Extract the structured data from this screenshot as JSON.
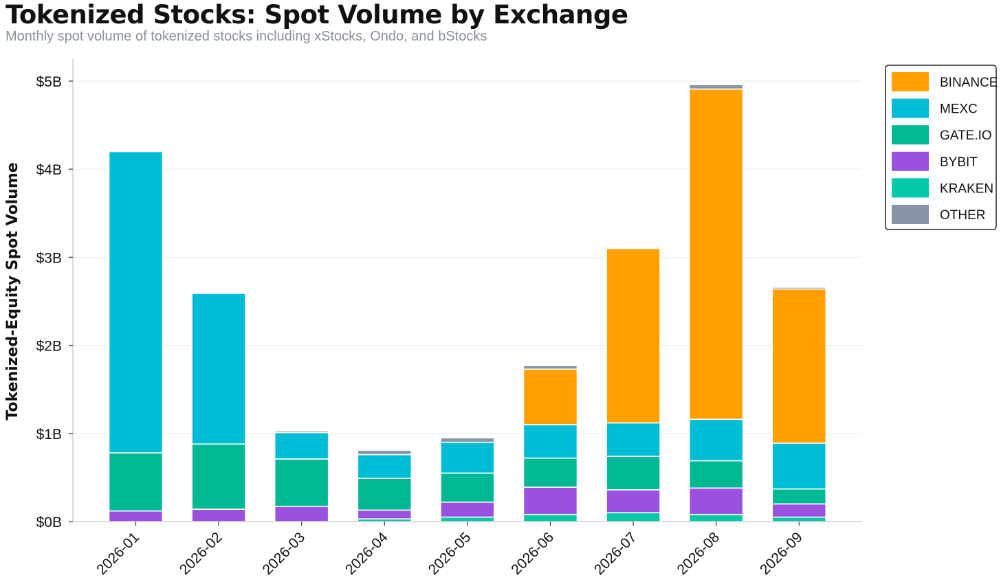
{
  "header": {
    "title": "Tokenized Stocks: Spot Volume by Exchange",
    "subtitle": "Monthly spot volume of tokenized stocks including xStocks, Ondo, and bStocks"
  },
  "chart_data": {
    "type": "bar",
    "stacked": true,
    "title": "Tokenized Stocks: Spot Volume by Exchange",
    "subtitle": "Monthly spot volume of tokenized stocks including xStocks, Ondo, and bStocks",
    "xlabel": "",
    "ylabel": "Tokenized-Equity Spot Volume",
    "categories": [
      "2026-01",
      "2026-02",
      "2026-03",
      "2026-04",
      "2026-05",
      "2026-06",
      "2026-07",
      "2026-08",
      "2026-09"
    ],
    "ylim": [
      0,
      5.3
    ],
    "yticks": [
      0,
      1,
      2,
      3,
      4,
      5
    ],
    "ytick_labels": [
      "$0B",
      "$1B",
      "$2B",
      "$3B",
      "$4B",
      "$5B"
    ],
    "grid": true,
    "legend_position": "top-right",
    "series": [
      {
        "name": "KRAKEN",
        "color": "#00c9a7",
        "values": [
          0.0,
          0.0,
          0.0,
          0.03,
          0.05,
          0.08,
          0.1,
          0.08,
          0.05
        ]
      },
      {
        "name": "BYBIT",
        "color": "#9b51e0",
        "values": [
          0.12,
          0.14,
          0.17,
          0.1,
          0.17,
          0.31,
          0.26,
          0.3,
          0.15
        ]
      },
      {
        "name": "GATE.IO",
        "color": "#00b894",
        "values": [
          0.66,
          0.74,
          0.54,
          0.36,
          0.33,
          0.33,
          0.38,
          0.31,
          0.17
        ]
      },
      {
        "name": "MEXC",
        "color": "#00bcd4",
        "values": [
          3.42,
          1.71,
          0.3,
          0.27,
          0.35,
          0.38,
          0.38,
          0.47,
          0.52
        ]
      },
      {
        "name": "BINANCE",
        "color": "#ff9f00",
        "values": [
          0.0,
          0.0,
          0.0,
          0.0,
          0.0,
          0.63,
          1.98,
          3.75,
          1.75
        ]
      },
      {
        "name": "OTHER",
        "color": "#8793a6",
        "values": [
          0.0,
          0.0,
          0.02,
          0.05,
          0.05,
          0.04,
          0.0,
          0.05,
          0.02
        ]
      }
    ],
    "legend_order": [
      "BINANCE",
      "MEXC",
      "GATE.IO",
      "BYBIT",
      "KRAKEN",
      "OTHER"
    ]
  }
}
